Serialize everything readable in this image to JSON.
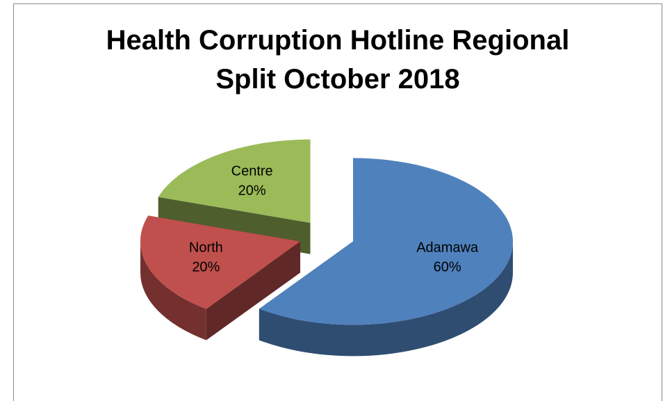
{
  "chart_data": {
    "type": "pie",
    "title": "Health Corruption Hotline Regional Split October 2018",
    "categories": [
      "Adamawa",
      "North",
      "Centre"
    ],
    "values": [
      60,
      20,
      20
    ],
    "value_labels": [
      "60%",
      "20%",
      "20%"
    ],
    "colors": [
      "#4f81bd",
      "#c0504d",
      "#9bbb59"
    ]
  }
}
